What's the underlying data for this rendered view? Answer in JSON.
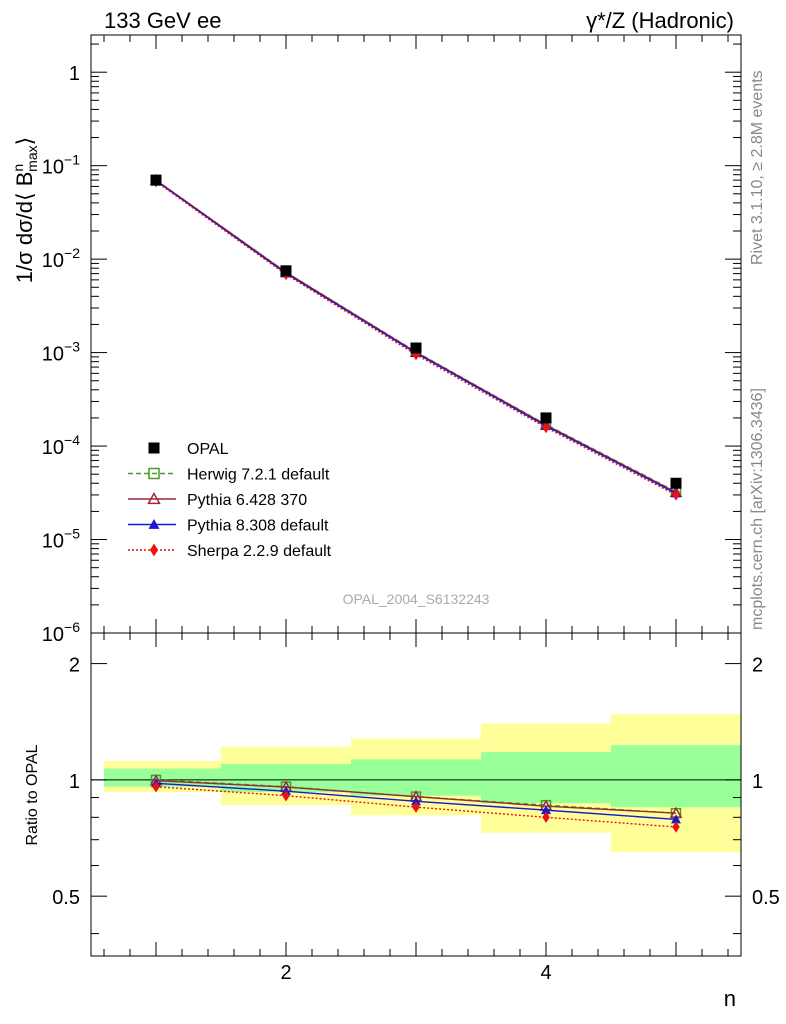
{
  "header": {
    "left_title": "133 GeV ee",
    "right_title": "γ*/Z (Hadronic)"
  },
  "side_labels": {
    "rivet": "Rivet 3.1.10, ≥ 2.8M events",
    "mcplots": "mcplots.cern.ch [arXiv:1306.3436]"
  },
  "watermark": "OPAL_2004_S6132243",
  "colors": {
    "opal": "#000000",
    "herwig": "#4a9a2a",
    "pythia6": "#9a2a3a",
    "pythia8": "#1a1acc",
    "sherpa": "#ee1111",
    "band_inner": "#99ff99",
    "band_outer": "#ffff99"
  },
  "chart_data": [
    {
      "type": "line",
      "panel": "main",
      "ylabel": "1/σ dσ/d⟨ B",
      "ylabel_sup": "n",
      "ylabel_sub": "max",
      "ylabel_close": "⟩",
      "yscale": "log",
      "xlim": [
        0.5,
        5.5
      ],
      "ylim": [
        1e-06,
        2.5
      ],
      "y_ticks": [
        {
          "value": 1,
          "base": "1",
          "exp": ""
        },
        {
          "value": 0.1,
          "base": "10",
          "exp": "−1"
        },
        {
          "value": 0.01,
          "base": "10",
          "exp": "−2"
        },
        {
          "value": 0.001,
          "base": "10",
          "exp": "−3"
        },
        {
          "value": 0.0001,
          "base": "10",
          "exp": "−4"
        },
        {
          "value": 1e-05,
          "base": "10",
          "exp": "−5"
        },
        {
          "value": 1e-06,
          "base": "10",
          "exp": "−6"
        }
      ],
      "x": [
        1,
        2,
        3,
        4,
        5
      ],
      "legend_position": "bottom-left",
      "series": [
        {
          "name": "OPAL",
          "key": "opal",
          "marker": "square-filled",
          "values": [
            0.07,
            0.0075,
            0.00112,
            0.0002,
            4e-05
          ]
        },
        {
          "name": "Herwig 7.2.1 default",
          "key": "herwig",
          "marker": "square-open",
          "line": "dashed",
          "values": [
            0.0702,
            0.00725,
            0.00102,
            0.00017,
            3.25e-05
          ]
        },
        {
          "name": "Pythia 6.428 370",
          "key": "pythia6",
          "marker": "triangle-open",
          "line": "solid",
          "values": [
            0.07,
            0.00722,
            0.00101,
            0.000168,
            3.2e-05
          ]
        },
        {
          "name": "Pythia 8.308 default",
          "key": "pythia8",
          "marker": "triangle-filled",
          "line": "solid",
          "values": [
            0.069,
            0.00705,
            0.00099,
            0.000164,
            3.12e-05
          ]
        },
        {
          "name": "Sherpa 2.2.9 default",
          "key": "sherpa",
          "marker": "diamond-filled",
          "line": "dotted",
          "values": [
            0.0675,
            0.00685,
            0.00095,
            0.000158,
            3e-05
          ]
        }
      ]
    },
    {
      "type": "line",
      "panel": "ratio",
      "ylabel": "Ratio to OPAL",
      "xlabel": "n",
      "yscale": "log",
      "xlim": [
        0.5,
        5.5
      ],
      "ylim": [
        0.35,
        2.4
      ],
      "y_tick_labels": [
        {
          "value": 2,
          "label": "2"
        },
        {
          "value": 1,
          "label": "1"
        },
        {
          "value": 0.5,
          "label": "0.5"
        }
      ],
      "x_tick_labels": [
        {
          "value": 2,
          "label": "2"
        },
        {
          "value": 4,
          "label": "4"
        }
      ],
      "bands": {
        "bins": [
          [
            0.6,
            1.5
          ],
          [
            1.5,
            2.5
          ],
          [
            2.5,
            3.5
          ],
          [
            3.5,
            4.5
          ],
          [
            4.5,
            5.5
          ]
        ],
        "inner": [
          [
            0.96,
            1.07
          ],
          [
            0.93,
            1.1
          ],
          [
            0.91,
            1.13
          ],
          [
            0.87,
            1.18
          ],
          [
            0.85,
            1.23
          ]
        ],
        "outer": [
          [
            0.93,
            1.12
          ],
          [
            0.86,
            1.22
          ],
          [
            0.81,
            1.28
          ],
          [
            0.73,
            1.4
          ],
          [
            0.65,
            1.48
          ]
        ]
      },
      "x": [
        1,
        2,
        3,
        4,
        5
      ],
      "series": [
        {
          "name": "Herwig 7.2.1 default",
          "key": "herwig",
          "marker": "square-open",
          "line": "dashed",
          "values": [
            1.0,
            0.96,
            0.905,
            0.86,
            0.82
          ]
        },
        {
          "name": "Pythia 6.428 370",
          "key": "pythia6",
          "marker": "triangle-open",
          "line": "solid",
          "values": [
            0.995,
            0.958,
            0.905,
            0.855,
            0.82
          ]
        },
        {
          "name": "Pythia 8.308 default",
          "key": "pythia8",
          "marker": "triangle-filled",
          "line": "solid",
          "values": [
            0.98,
            0.935,
            0.88,
            0.835,
            0.79
          ]
        },
        {
          "name": "Sherpa 2.2.9 default",
          "key": "sherpa",
          "marker": "diamond-filled",
          "line": "dotted",
          "values": [
            0.96,
            0.91,
            0.85,
            0.8,
            0.755
          ]
        }
      ]
    }
  ]
}
